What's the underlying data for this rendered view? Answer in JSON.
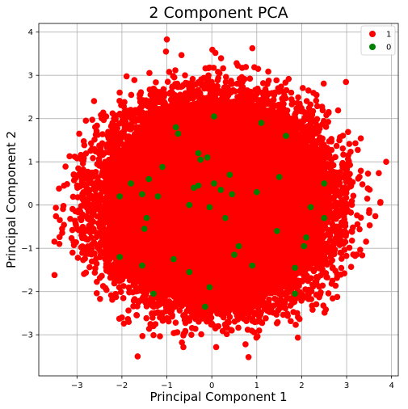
{
  "chart_data": {
    "type": "scatter",
    "title": "2 Component PCA",
    "xlabel": "Principal Component 1",
    "ylabel": "Principal Component 2",
    "xlim": [
      -3.85,
      4.15
    ],
    "ylim": [
      -3.95,
      4.2
    ],
    "xticks": [
      -3,
      -2,
      -1,
      0,
      1,
      2,
      3,
      4
    ],
    "yticks": [
      -3,
      -2,
      -1,
      0,
      1,
      2,
      3,
      4
    ],
    "xtick_labels": [
      "−3",
      "−2",
      "−1",
      "0",
      "1",
      "2",
      "3",
      "4"
    ],
    "ytick_labels": [
      "−3",
      "−2",
      "−1",
      "0",
      "1",
      "2",
      "3",
      "4"
    ],
    "grid": true,
    "legend": "top-right",
    "series": [
      {
        "name": "1",
        "color": "#ff0000",
        "points": [
          [
            -1.0,
            3.83
          ],
          [
            0.08,
            3.52
          ],
          [
            -1.02,
            3.55
          ],
          [
            -0.05,
            3.18
          ],
          [
            1.03,
            3.15
          ],
          [
            -0.95,
            3.08
          ],
          [
            3.88,
            1.0
          ],
          [
            3.75,
            0.05
          ],
          [
            3.5,
            -0.18
          ],
          [
            -3.5,
            -1.62
          ],
          [
            -1.65,
            -3.5
          ],
          [
            0.75,
            -3.22
          ],
          [
            -0.8,
            -2.95
          ],
          [
            1.2,
            -2.62
          ],
          [
            -2.0,
            -2.6
          ],
          [
            3.1,
            -1.43
          ],
          [
            2.95,
            -1.58
          ],
          [
            -3.4,
            0.38
          ],
          [
            -3.15,
            -0.32
          ],
          [
            -3.05,
            1.12
          ],
          [
            -2.95,
            1.65
          ],
          [
            3.12,
            -0.62
          ],
          [
            3.0,
            0.8
          ],
          [
            2.55,
            2.08
          ],
          [
            -2.05,
            2.6
          ],
          [
            2.15,
            2.65
          ],
          [
            -0.25,
            2.85
          ],
          [
            0.65,
            2.9
          ],
          [
            -2.98,
            -1.22
          ],
          [
            -2.35,
            2.05
          ],
          [
            1.9,
            -2.5
          ],
          [
            -1.3,
            -2.8
          ],
          [
            -0.4,
            -2.55
          ],
          [
            0.35,
            -2.7
          ],
          [
            -3.3,
            -0.02
          ]
        ]
      },
      {
        "name": "0",
        "color": "#008000",
        "points": [
          [
            -0.8,
            1.8
          ],
          [
            -0.75,
            1.65
          ],
          [
            -0.3,
            1.2
          ],
          [
            -0.25,
            1.05
          ],
          [
            -0.1,
            1.1
          ],
          [
            0.05,
            2.05
          ],
          [
            -1.1,
            0.88
          ],
          [
            -1.4,
            0.6
          ],
          [
            -1.8,
            0.5
          ],
          [
            -1.55,
            0.25
          ],
          [
            -1.2,
            0.2
          ],
          [
            -0.4,
            0.4
          ],
          [
            -0.3,
            0.45
          ],
          [
            0.2,
            0.35
          ],
          [
            0.45,
            0.25
          ],
          [
            0.4,
            0.7
          ],
          [
            1.0,
            0.3
          ],
          [
            1.5,
            0.65
          ],
          [
            1.65,
            1.6
          ],
          [
            1.1,
            1.9
          ],
          [
            2.5,
            0.5
          ],
          [
            2.5,
            -0.3
          ],
          [
            -2.05,
            0.2
          ],
          [
            -1.5,
            -0.55
          ],
          [
            -1.45,
            -0.3
          ],
          [
            -2.05,
            -1.2
          ],
          [
            -1.55,
            -1.4
          ],
          [
            -1.3,
            -2.05
          ],
          [
            -0.85,
            -1.25
          ],
          [
            -0.5,
            -1.55
          ],
          [
            -0.05,
            -1.9
          ],
          [
            0.5,
            -1.15
          ],
          [
            0.9,
            -1.4
          ],
          [
            1.45,
            -0.6
          ],
          [
            1.85,
            -1.45
          ],
          [
            2.05,
            -0.95
          ],
          [
            2.1,
            -0.75
          ],
          [
            2.2,
            -0.05
          ],
          [
            0.3,
            -0.3
          ],
          [
            -0.05,
            -0.05
          ],
          [
            0.6,
            -0.95
          ],
          [
            1.85,
            -2.05
          ],
          [
            -0.15,
            -2.35
          ],
          [
            0.05,
            0.5
          ],
          [
            -0.5,
            0.0
          ]
        ]
      }
    ]
  }
}
